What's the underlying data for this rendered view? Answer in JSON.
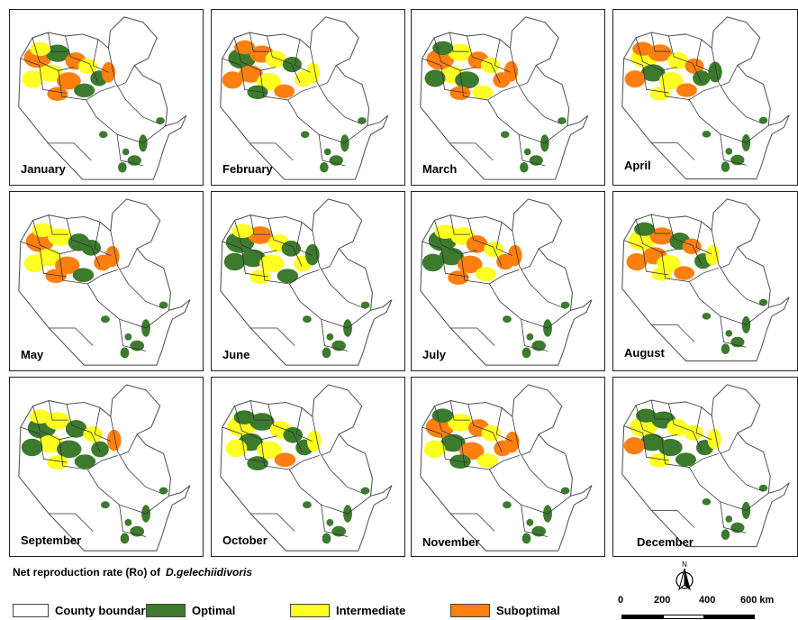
{
  "months": [
    "January",
    "February",
    "March",
    "April",
    "May",
    "June",
    "July",
    "August",
    "September",
    "October",
    "November",
    "December"
  ],
  "title": {
    "prefix": "Net reproduction rate (Ro) of",
    "species": "D.gelechiidivoris"
  },
  "legend": [
    {
      "label": "County boundary",
      "color": "#ffffff"
    },
    {
      "label": "Optimal",
      "color": "#3c7a2e"
    },
    {
      "label": "Intermediate",
      "color": "#ffff22"
    },
    {
      "label": "Suboptimal",
      "color": "#ff7f10"
    }
  ],
  "scale_bar": {
    "ticks": [
      "0",
      "200",
      "400",
      "600 km"
    ]
  },
  "north_label": "N",
  "dominant_class": {
    "January": "Suboptimal",
    "February": "Suboptimal",
    "March": "Suboptimal",
    "April": "Suboptimal",
    "May": "Suboptimal",
    "June": "Optimal",
    "July": "Suboptimal",
    "August": "Suboptimal",
    "September": "Optimal",
    "October": "Optimal",
    "November": "Suboptimal",
    "December": "Optimal"
  }
}
